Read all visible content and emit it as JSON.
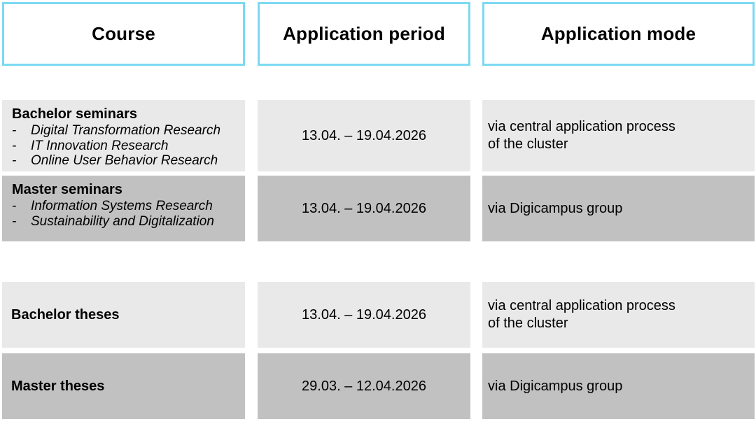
{
  "colors": {
    "header_border": "#7cd9f1",
    "row_light": "#e9e9e9",
    "row_dark": "#c1c1c1",
    "text": "#000000",
    "background": "#ffffff"
  },
  "list_marker": "-",
  "header": {
    "course": "Course",
    "period": "Application period",
    "mode": "Application mode"
  },
  "rows": [
    {
      "title": "Bachelor seminars",
      "items": [
        "Digital Transformation Research",
        "IT Innovation Research",
        "Online User Behavior Research"
      ],
      "period": "13.04. – 19.04.2026",
      "mode_lines": [
        "via central application process",
        "of the cluster"
      ],
      "shade": "light"
    },
    {
      "title": "Master seminars",
      "items": [
        "Information Systems Research",
        "Sustainability and Digitalization"
      ],
      "period": "13.04. – 19.04.2026",
      "mode_lines": [
        "via Digicampus group"
      ],
      "shade": "dark"
    },
    {
      "title": "Bachelor theses",
      "items": [],
      "period": "13.04. – 19.04.2026",
      "mode_lines": [
        "via central application process",
        "of the cluster"
      ],
      "shade": "light"
    },
    {
      "title": "Master theses",
      "items": [],
      "period": "29.03. – 12.04.2026",
      "mode_lines": [
        "via Digicampus group"
      ],
      "shade": "dark"
    }
  ]
}
